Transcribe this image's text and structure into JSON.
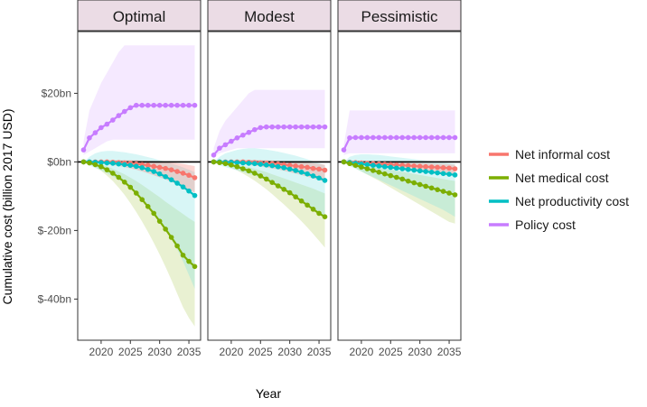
{
  "chart_data": {
    "type": "line",
    "facets": [
      "Optimal",
      "Modest",
      "Pessimistic"
    ],
    "xlabel": "Year",
    "ylabel": "Cumulative cost (billion 2017 USD)",
    "ylim": [
      -52,
      38
    ],
    "xlim": [
      2016,
      2037
    ],
    "y_ticks": [
      20,
      0,
      -20,
      -40
    ],
    "y_tick_labels": [
      "$20bn",
      "$0bn",
      "$-20bn",
      "$-40bn"
    ],
    "x_ticks": [
      2020,
      2025,
      2030,
      2035
    ],
    "x_tick_labels": [
      "2020",
      "2025",
      "2030",
      "2035"
    ],
    "years": [
      2017,
      2018,
      2019,
      2020,
      2021,
      2022,
      2023,
      2024,
      2025,
      2026,
      2027,
      2028,
      2029,
      2030,
      2031,
      2032,
      2033,
      2034,
      2035,
      2036
    ],
    "zero_line": true,
    "legend": {
      "position": "right"
    },
    "series": [
      {
        "name": "Net informal cost",
        "color": "#F8766D",
        "band_fill": "#F8766D"
      },
      {
        "name": "Net medical cost",
        "color": "#7CAE00",
        "band_fill": "#B5D16A"
      },
      {
        "name": "Net productivity cost",
        "color": "#00BFC4",
        "band_fill": "#7FE0E2"
      },
      {
        "name": "Policy cost",
        "color": "#C77CFF",
        "band_fill": "#DDB7FF"
      }
    ],
    "panels": [
      {
        "name": "Optimal",
        "lines": {
          "Policy cost": [
            3.5,
            7,
            8.5,
            10,
            11,
            12.2,
            13.5,
            14.7,
            15.8,
            16.5,
            16.5,
            16.5,
            16.5,
            16.5,
            16.5,
            16.5,
            16.5,
            16.5,
            16.5,
            16.5
          ],
          "Net informal cost": [
            0,
            0,
            0,
            0,
            0,
            -0.1,
            -0.2,
            -0.3,
            -0.4,
            -0.6,
            -0.8,
            -1.0,
            -1.3,
            -1.6,
            -1.9,
            -2.3,
            -2.8,
            -3.3,
            -3.9,
            -4.6
          ],
          "Net productivity cost": [
            0,
            0,
            -0.1,
            -0.2,
            -0.3,
            -0.4,
            -0.6,
            -0.8,
            -1.0,
            -1.3,
            -1.7,
            -2.2,
            -2.8,
            -3.5,
            -4.3,
            -5.2,
            -6.2,
            -7.3,
            -8.5,
            -9.8
          ],
          "Net medical cost": [
            0,
            -0.3,
            -0.8,
            -1.4,
            -2.3,
            -3.3,
            -4.5,
            -5.9,
            -7.4,
            -9.1,
            -11,
            -13,
            -15,
            -17.3,
            -19.6,
            -22,
            -24.5,
            -27.2,
            -29,
            -30.5
          ]
        },
        "bands": {
          "Policy cost": {
            "upper": [
              6,
              15,
              19,
              23,
              26,
              29,
              32,
              34,
              34,
              34,
              34,
              34,
              34,
              34,
              34,
              34,
              34,
              34,
              34,
              34
            ],
            "lower": [
              2,
              3,
              4,
              5,
              6,
              6.5,
              6.5,
              6.5,
              6.5,
              6.5,
              6.5,
              6.5,
              6.5,
              6.5,
              6.5,
              6.5,
              6.5,
              6.5,
              6.5,
              6.5
            ]
          },
          "Net informal cost": {
            "upper": [
              0,
              0.2,
              0.3,
              0.4,
              0.5,
              0.5,
              0.5,
              0.5,
              0.5,
              0.5,
              0.4,
              0.3,
              0.2,
              0.1,
              0,
              -0.2,
              -0.4,
              -0.6,
              -0.9,
              -1.2
            ],
            "lower": [
              0,
              -0.2,
              -0.3,
              -0.5,
              -0.7,
              -0.9,
              -1.2,
              -1.5,
              -1.9,
              -2.3,
              -2.8,
              -3.3,
              -3.9,
              -4.5,
              -5.1,
              -5.8,
              -6.5,
              -7.3,
              -8.1,
              -9
            ]
          },
          "Net productivity cost": {
            "upper": [
              0,
              1.5,
              2.5,
              3,
              3.2,
              3.2,
              3,
              2.8,
              2.5,
              2.2,
              1.8,
              1.4,
              1,
              0.5,
              0,
              -0.5,
              -1,
              -1.6,
              -2.3,
              -3
            ],
            "lower": [
              0,
              -1,
              -1.8,
              -2.5,
              -3.3,
              -4.2,
              -5.2,
              -6.3,
              -7.5,
              -8.8,
              -10.5,
              -12.5,
              -14.5,
              -17,
              -19.5,
              -22.5,
              -25.5,
              -29,
              -33,
              -37
            ]
          },
          "Net medical cost": {
            "upper": [
              0,
              -0.1,
              -0.4,
              -0.8,
              -1.3,
              -2,
              -2.8,
              -3.6,
              -4.6,
              -5.6,
              -6.7,
              -7.9,
              -9.1,
              -10.3,
              -11.6,
              -12.8,
              -14,
              -15.2,
              -16.4,
              -17.5
            ],
            "lower": [
              0,
              -0.6,
              -1.5,
              -2.6,
              -4,
              -5.6,
              -7.5,
              -9.6,
              -12,
              -14.6,
              -17.4,
              -20.4,
              -23.6,
              -27,
              -30.6,
              -34.4,
              -38.4,
              -42.4,
              -45.5,
              -48
            ]
          }
        }
      },
      {
        "name": "Modest",
        "lines": {
          "Policy cost": [
            2,
            4,
            5,
            6,
            7,
            7.8,
            8.6,
            9.4,
            10,
            10.2,
            10.2,
            10.2,
            10.2,
            10.2,
            10.2,
            10.2,
            10.2,
            10.2,
            10.2,
            10.2
          ],
          "Net informal cost": [
            0,
            0,
            0,
            0,
            0,
            0,
            -0.1,
            -0.2,
            -0.3,
            -0.4,
            -0.5,
            -0.6,
            -0.8,
            -1,
            -1.2,
            -1.4,
            -1.6,
            -1.9,
            -2.1,
            -2.4
          ],
          "Net productivity cost": [
            0,
            0,
            -0.1,
            -0.1,
            -0.2,
            -0.3,
            -0.4,
            -0.5,
            -0.7,
            -0.9,
            -1.1,
            -1.4,
            -1.7,
            -2.1,
            -2.5,
            -3,
            -3.5,
            -4.1,
            -4.7,
            -5.4
          ],
          "Net medical cost": [
            0,
            -0.2,
            -0.5,
            -0.9,
            -1.4,
            -2,
            -2.6,
            -3.3,
            -4.1,
            -5,
            -6,
            -7,
            -8,
            -9,
            -10.2,
            -11.4,
            -12.6,
            -13.8,
            -15,
            -16
          ]
        },
        "bands": {
          "Policy cost": {
            "upper": [
              4,
              9,
              12,
              14,
              16,
              18,
              20,
              21,
              21,
              21,
              21,
              21,
              21,
              21,
              21,
              21,
              21,
              21,
              21,
              21
            ],
            "lower": [
              1.5,
              2.5,
              3,
              3.5,
              4,
              4,
              4,
              4,
              4,
              4,
              4,
              4,
              4,
              4,
              4,
              4,
              4,
              4,
              4,
              4
            ]
          },
          "Net informal cost": {
            "upper": [
              0,
              0.2,
              0.3,
              0.4,
              0.5,
              0.6,
              0.6,
              0.6,
              0.5,
              0.5,
              0.4,
              0.3,
              0.2,
              0.1,
              0,
              -0.1,
              -0.2,
              -0.4,
              -0.6,
              -0.8
            ],
            "lower": [
              0,
              -0.2,
              -0.3,
              -0.4,
              -0.5,
              -0.7,
              -0.9,
              -1.1,
              -1.3,
              -1.6,
              -1.9,
              -2.2,
              -2.6,
              -3,
              -3.4,
              -3.8,
              -4.3,
              -4.8,
              -5.3,
              -5.8
            ]
          },
          "Net productivity cost": {
            "upper": [
              0,
              1.5,
              2.5,
              3,
              3.5,
              3.8,
              4,
              4,
              3.8,
              3.6,
              3.3,
              3,
              2.6,
              2.2,
              1.8,
              1.3,
              0.8,
              0.2,
              -0.4,
              -1
            ],
            "lower": [
              0,
              -1,
              -1.5,
              -2,
              -2.5,
              -3,
              -3.5,
              -4,
              -4.6,
              -5.3,
              -6,
              -6.8,
              -7.7,
              -8.7,
              -9.8,
              -11,
              -12.3,
              -13.6,
              -15,
              -16.5
            ]
          },
          "Net medical cost": {
            "upper": [
              0,
              0,
              -0.2,
              -0.5,
              -0.8,
              -1.2,
              -1.6,
              -2,
              -2.5,
              -3,
              -3.6,
              -4.2,
              -4.8,
              -5.4,
              -6,
              -6.6,
              -7.2,
              -7.8,
              -8.5,
              -9.2
            ],
            "lower": [
              0,
              -0.5,
              -1,
              -1.7,
              -2.5,
              -3.4,
              -4.4,
              -5.5,
              -6.7,
              -8,
              -9.4,
              -10.9,
              -12.4,
              -14,
              -15.6,
              -17.3,
              -19.1,
              -21,
              -23,
              -25
            ]
          }
        }
      },
      {
        "name": "Pessimistic",
        "lines": {
          "Policy cost": [
            3.5,
            7,
            7.1,
            7.1,
            7.1,
            7.1,
            7.1,
            7.1,
            7.1,
            7.1,
            7.1,
            7.1,
            7.1,
            7.1,
            7.1,
            7.1,
            7.1,
            7.1,
            7.1,
            7.1
          ],
          "Net informal cost": [
            0,
            -0.1,
            -0.2,
            -0.3,
            -0.4,
            -0.5,
            -0.6,
            -0.7,
            -0.8,
            -0.9,
            -1,
            -1.1,
            -1.2,
            -1.3,
            -1.4,
            -1.5,
            -1.6,
            -1.7,
            -1.8,
            -2
          ],
          "Net productivity cost": [
            0,
            -0.2,
            -0.4,
            -0.6,
            -0.8,
            -1,
            -1.2,
            -1.4,
            -1.6,
            -1.8,
            -2,
            -2.2,
            -2.4,
            -2.6,
            -2.8,
            -3,
            -3.2,
            -3.4,
            -3.6,
            -3.8
          ],
          "Net medical cost": [
            0,
            -0.5,
            -1,
            -1.5,
            -2,
            -2.5,
            -3,
            -3.5,
            -4,
            -4.5,
            -5,
            -5.6,
            -6.1,
            -6.6,
            -7.1,
            -7.6,
            -8.1,
            -8.6,
            -9.1,
            -9.6
          ]
        },
        "bands": {
          "Policy cost": {
            "upper": [
              5,
              15,
              15,
              15,
              15,
              15,
              15,
              15,
              15,
              15,
              15,
              15,
              15,
              15,
              15,
              15,
              15,
              15,
              15,
              15
            ],
            "lower": [
              2,
              2.5,
              2.5,
              2.5,
              2.5,
              2.5,
              2.5,
              2.5,
              2.5,
              2.5,
              2.5,
              2.5,
              2.5,
              2.5,
              2.5,
              2.5,
              2.5,
              2.5,
              2.5,
              2.5
            ]
          },
          "Net informal cost": {
            "upper": [
              0,
              0.1,
              0.1,
              0.1,
              0,
              0,
              -0.1,
              -0.1,
              -0.2,
              -0.2,
              -0.3,
              -0.3,
              -0.4,
              -0.4,
              -0.5,
              -0.5,
              -0.6,
              -0.6,
              -0.7,
              -0.8
            ],
            "lower": [
              0,
              -0.3,
              -0.5,
              -0.7,
              -0.9,
              -1.1,
              -1.3,
              -1.5,
              -1.7,
              -1.9,
              -2.1,
              -2.3,
              -2.5,
              -2.7,
              -2.9,
              -3.1,
              -3.3,
              -3.5,
              -3.7,
              -4
            ]
          },
          "Net productivity cost": {
            "upper": [
              0,
              1.5,
              2,
              2.2,
              2.2,
              2.1,
              2,
              1.8,
              1.6,
              1.4,
              1.2,
              1,
              0.8,
              0.6,
              0.4,
              0.2,
              0,
              -0.2,
              -0.4,
              -0.6
            ],
            "lower": [
              0,
              -1.2,
              -2,
              -2.8,
              -3.6,
              -4.4,
              -5.2,
              -6,
              -6.8,
              -7.6,
              -8.4,
              -9.2,
              -10,
              -10.8,
              -11.6,
              -12.4,
              -13.2,
              -14,
              -15,
              -16
            ]
          },
          "Net medical cost": {
            "upper": [
              0,
              -0.2,
              -0.5,
              -0.8,
              -1.1,
              -1.4,
              -1.7,
              -2,
              -2.3,
              -2.6,
              -2.9,
              -3.2,
              -3.5,
              -3.8,
              -4.1,
              -4.4,
              -4.7,
              -5,
              -5.3,
              -5.6
            ],
            "lower": [
              0,
              -1,
              -1.9,
              -2.8,
              -3.7,
              -4.6,
              -5.5,
              -6.5,
              -7.5,
              -8.5,
              -9.5,
              -10.5,
              -11.5,
              -12.5,
              -13.5,
              -14.5,
              -15.5,
              -16.5,
              -17.5,
              -18
            ]
          }
        }
      }
    ]
  }
}
